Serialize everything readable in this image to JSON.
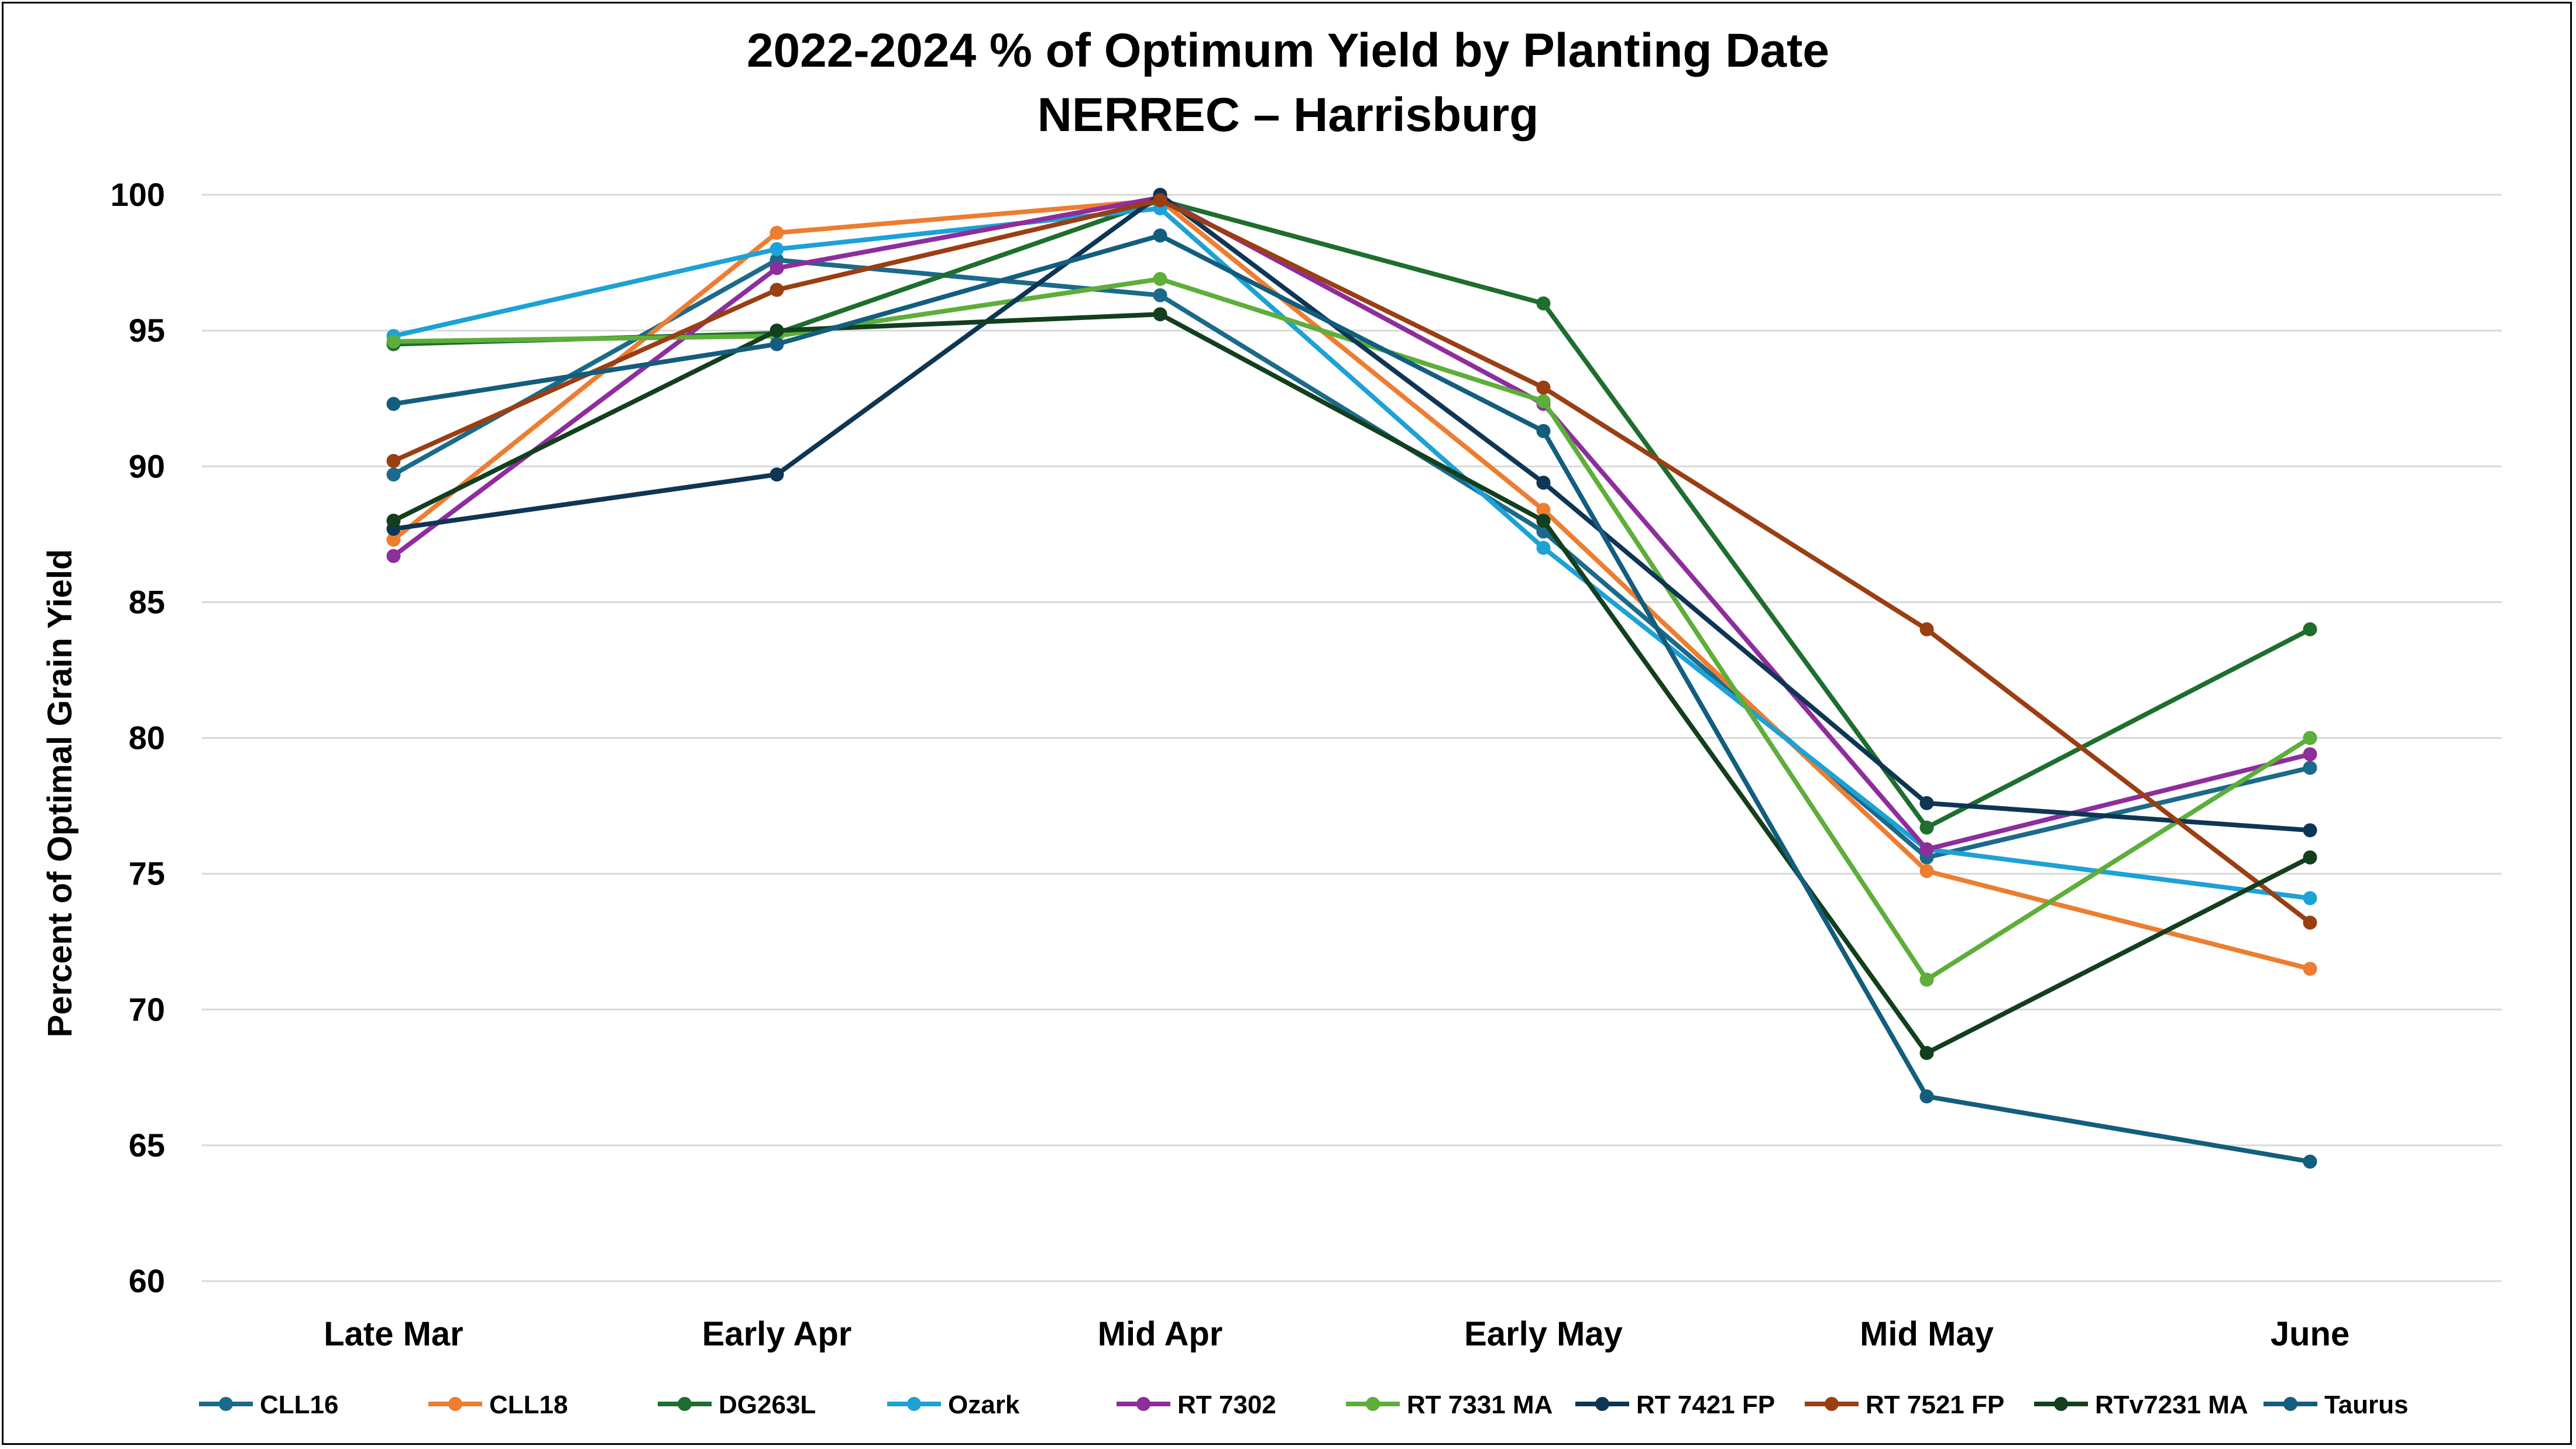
{
  "chart_data": {
    "type": "line",
    "title": "2022-2024 % of Optimum Yield by Planting Date",
    "subtitle": "NERREC – Harrisburg",
    "xlabel": "",
    "ylabel": "Percent of Optimal Grain Yield",
    "categories": [
      "Late Mar",
      "Early Apr",
      "Mid Apr",
      "Early May",
      "Mid May",
      "June"
    ],
    "ylim": [
      60,
      100
    ],
    "yticks": [
      60,
      65,
      70,
      75,
      80,
      85,
      90,
      95,
      100
    ],
    "grid": true,
    "legend_position": "bottom",
    "series": [
      {
        "name": "CLL16",
        "color": "#1B6A8A",
        "values": [
          89.7,
          97.6,
          96.3,
          87.6,
          75.6,
          78.9
        ]
      },
      {
        "name": "CLL18",
        "color": "#ED7D31",
        "values": [
          87.3,
          98.6,
          99.8,
          88.4,
          75.1,
          71.5
        ]
      },
      {
        "name": "DG263L",
        "color": "#1E6E2E",
        "values": [
          94.5,
          94.9,
          99.8,
          96.0,
          76.7,
          84.0
        ]
      },
      {
        "name": "Ozark",
        "color": "#1DA1D6",
        "values": [
          94.8,
          98.0,
          99.5,
          87.0,
          75.9,
          74.1
        ]
      },
      {
        "name": "RT 7302",
        "color": "#8E2D9C",
        "values": [
          86.7,
          97.3,
          99.9,
          92.3,
          75.9,
          79.4
        ]
      },
      {
        "name": "RT 7331 MA",
        "color": "#5DAE3A",
        "values": [
          94.6,
          94.8,
          96.9,
          92.4,
          71.1,
          80.0
        ]
      },
      {
        "name": "RT 7421 FP",
        "color": "#0E3554",
        "values": [
          87.7,
          89.7,
          100.0,
          89.4,
          77.6,
          76.6
        ]
      },
      {
        "name": "RT 7521 FP",
        "color": "#9A3E13",
        "values": [
          90.2,
          96.5,
          99.8,
          92.9,
          84.0,
          73.2
        ]
      },
      {
        "name": "RTv7231 MA",
        "color": "#123F1D",
        "values": [
          88.0,
          95.0,
          95.6,
          88.0,
          68.4,
          75.6
        ]
      },
      {
        "name": "Taurus",
        "color": "#135D7E",
        "values": [
          92.3,
          94.5,
          98.5,
          91.3,
          66.8,
          64.4
        ]
      }
    ]
  }
}
